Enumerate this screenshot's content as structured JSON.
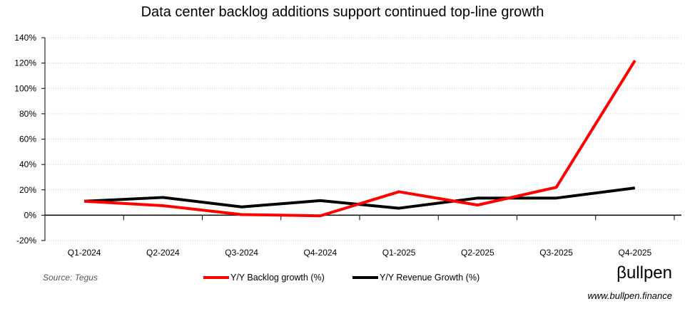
{
  "chart_data": {
    "type": "line",
    "title": "Data center backlog additions support continued top-line growth",
    "categories": [
      "Q1-2024",
      "Q2-2024",
      "Q3-2024",
      "Q4-2024",
      "Q1-2025",
      "Q2-2025",
      "Q3-2025",
      "Q4-2025"
    ],
    "series": [
      {
        "name": "Y/Y Backlog growth (%)",
        "color": "#ff0000",
        "values": [
          11,
          7.5,
          0.5,
          -0.5,
          18.5,
          8,
          22,
          122
        ]
      },
      {
        "name": "Y/Y Revenue Growth (%)",
        "color": "#000000",
        "values": [
          11,
          14,
          6.5,
          11.5,
          5.5,
          13.5,
          13.5,
          21.5
        ]
      }
    ],
    "ylim": [
      -20,
      140
    ],
    "yticks": [
      "-20%",
      "0%",
      "20%",
      "40%",
      "60%",
      "80%",
      "100%",
      "120%",
      "140%"
    ],
    "grid": "horizontal dotted",
    "legend": "bottom"
  },
  "footer": {
    "source": "Source: Tegus",
    "logo": "βullpen",
    "website": "www.bullpen.finance"
  }
}
